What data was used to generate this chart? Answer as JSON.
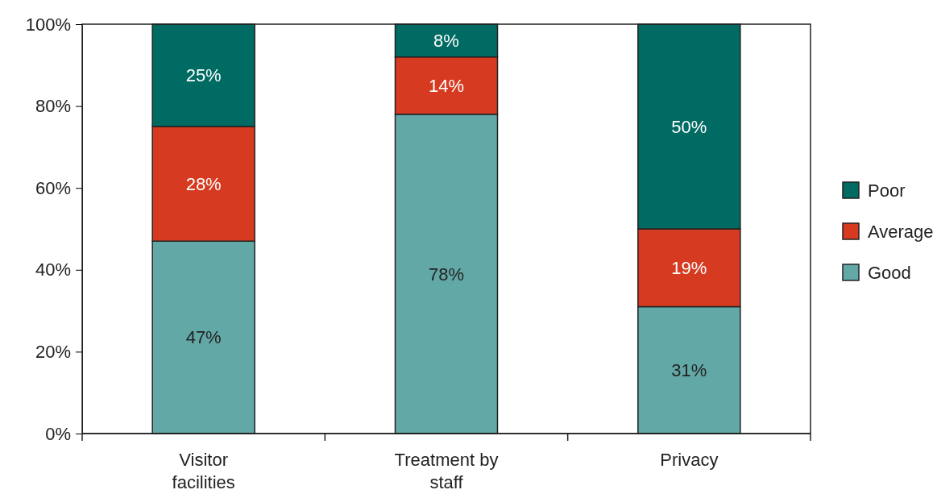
{
  "chart_data": {
    "type": "bar",
    "stacked": true,
    "categories": [
      "Visitor facilities",
      "Treatment by staff",
      "Privacy"
    ],
    "series": [
      {
        "name": "Good",
        "color": "#62a8a6",
        "values": [
          47,
          78,
          31
        ],
        "value_labels": [
          "47%",
          "78%",
          "31%"
        ]
      },
      {
        "name": "Average",
        "color": "#d63a20",
        "values": [
          28,
          14,
          19
        ],
        "value_labels": [
          "28%",
          "14%",
          "19%"
        ]
      },
      {
        "name": "Poor",
        "color": "#006b63",
        "values": [
          25,
          8,
          50
        ],
        "value_labels": [
          "25%",
          "8%",
          "50%"
        ]
      }
    ],
    "ylim": [
      0,
      100
    ],
    "yticks": [
      {
        "value": 0,
        "label": "0%"
      },
      {
        "value": 20,
        "label": "20%"
      },
      {
        "value": 40,
        "label": "40%"
      },
      {
        "value": 60,
        "label": "60%"
      },
      {
        "value": 80,
        "label": "80%"
      },
      {
        "value": 100,
        "label": "100%"
      }
    ],
    "legend": "right",
    "grid": false
  }
}
